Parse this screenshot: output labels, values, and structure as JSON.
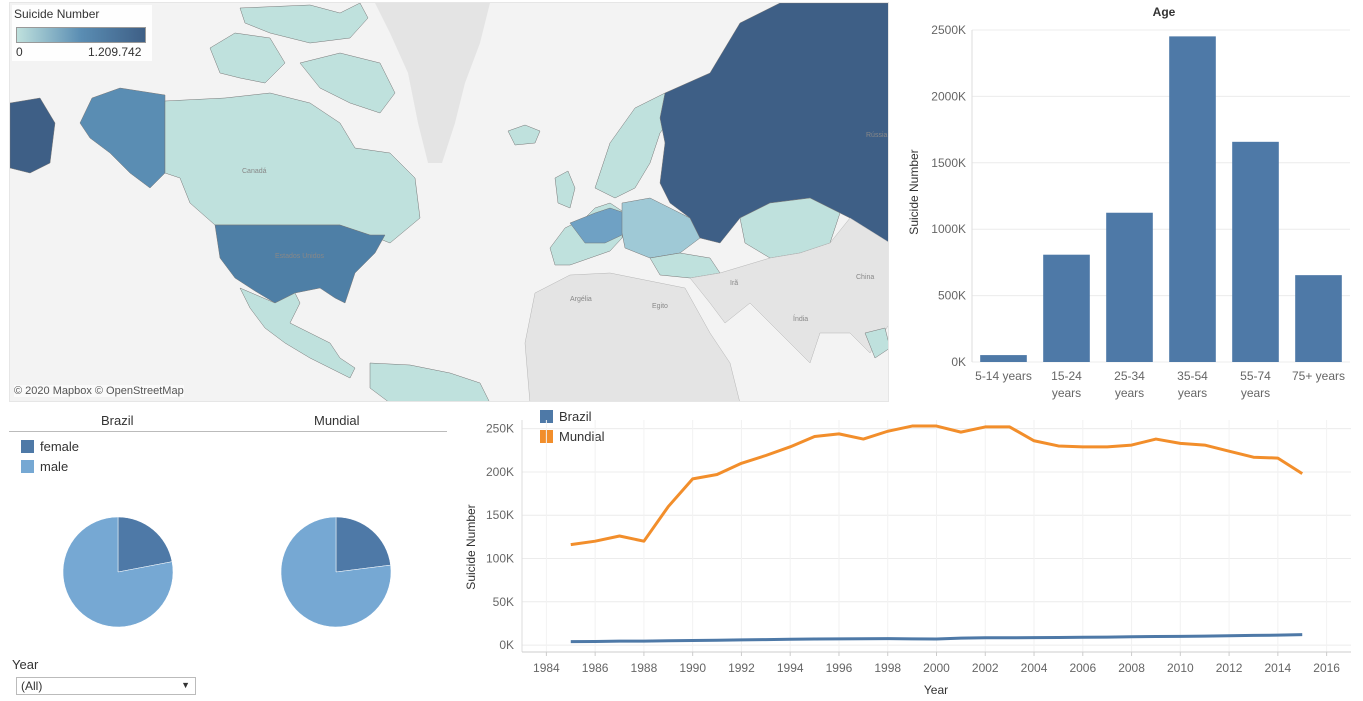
{
  "map": {
    "legend_title": "Suicide Number",
    "legend_min": "0",
    "legend_max": "1.209.742",
    "attribution": "© 2020 Mapbox © OpenStreetMap",
    "labels": [
      "Canadá",
      "Estados Unidos",
      "Argélia",
      "Egito",
      "Irã",
      "Índia",
      "China",
      "Rússia"
    ],
    "colors": {
      "low": "#bfe1dd",
      "mid": "#5a8db3",
      "high": "#3e5f86",
      "land": "#e4e4e4",
      "water": "#f3f3f3"
    }
  },
  "age_panel": {
    "title": "Age",
    "ylabel": "Suicide Number"
  },
  "pies": {
    "headers": [
      "Brazil",
      "Mundial"
    ],
    "legend": [
      {
        "label": "female",
        "color": "#4e79a7"
      },
      {
        "label": "male",
        "color": "#76a8d3"
      }
    ]
  },
  "line_panel": {
    "legend": [
      {
        "label": "Brazil",
        "color": "#4e79a7"
      },
      {
        "label": "Mundial",
        "color": "#f28e2b"
      }
    ]
  },
  "filter": {
    "label": "Year",
    "value": "(All)"
  },
  "chart_data": [
    {
      "type": "bar",
      "title": "Age",
      "ylabel": "Suicide Number",
      "categories": [
        [
          "5-14 years"
        ],
        [
          "15-24",
          "years"
        ],
        [
          "25-34",
          "years"
        ],
        [
          "35-54",
          "years"
        ],
        [
          "55-74",
          "years"
        ],
        [
          "75+ years"
        ]
      ],
      "values": [
        52000,
        808000,
        1124000,
        2452000,
        1658000,
        654000
      ],
      "ylim": [
        0,
        2500000
      ],
      "yticks": [
        0,
        500000,
        1000000,
        1500000,
        2000000,
        2500000
      ],
      "ytick_labels": [
        "0K",
        "500K",
        "1000K",
        "1500K",
        "2000K",
        "2500K"
      ],
      "color": "#4e79a7"
    },
    {
      "type": "pie",
      "name": "Brazil",
      "labels": [
        "female",
        "male"
      ],
      "values": [
        0.22,
        0.78
      ],
      "colors": [
        "#4e79a7",
        "#76a8d3"
      ]
    },
    {
      "type": "pie",
      "name": "Mundial",
      "labels": [
        "female",
        "male"
      ],
      "values": [
        0.23,
        0.77
      ],
      "colors": [
        "#4e79a7",
        "#76a8d3"
      ]
    },
    {
      "type": "line",
      "xlabel": "Year",
      "ylabel": "Suicide Number",
      "xlim": [
        1983,
        2017
      ],
      "ylim": [
        -8000,
        260000
      ],
      "xticks": [
        1984,
        1986,
        1988,
        1990,
        1992,
        1994,
        1996,
        1998,
        2000,
        2002,
        2004,
        2006,
        2008,
        2010,
        2012,
        2014,
        2016
      ],
      "yticks": [
        0,
        50000,
        100000,
        150000,
        200000,
        250000
      ],
      "ytick_labels": [
        "0K",
        "50K",
        "100K",
        "150K",
        "200K",
        "250K"
      ],
      "x": [
        1985,
        1986,
        1987,
        1988,
        1989,
        1990,
        1991,
        1992,
        1993,
        1994,
        1995,
        1996,
        1997,
        1998,
        1999,
        2000,
        2001,
        2002,
        2003,
        2004,
        2005,
        2006,
        2007,
        2008,
        2009,
        2010,
        2011,
        2012,
        2013,
        2014,
        2015
      ],
      "series": [
        {
          "name": "Mundial",
          "color": "#f28e2b",
          "values": [
            116000,
            120000,
            126000,
            120000,
            160000,
            192000,
            197000,
            210000,
            219000,
            229000,
            241000,
            244000,
            238000,
            247000,
            253000,
            253000,
            246000,
            252000,
            252000,
            236000,
            230000,
            229000,
            229000,
            231000,
            238000,
            233000,
            231000,
            224000,
            217000,
            216000,
            198000
          ]
        },
        {
          "name": "Brazil",
          "color": "#4e79a7",
          "values": [
            4000,
            4200,
            4500,
            4600,
            5000,
            5300,
            5600,
            6000,
            6300,
            6700,
            7000,
            7200,
            7300,
            7500,
            7200,
            7000,
            8000,
            8400,
            8500,
            8600,
            8800,
            9000,
            9200,
            9600,
            9900,
            10100,
            10400,
            10800,
            11200,
            11500,
            12000
          ]
        }
      ]
    }
  ]
}
